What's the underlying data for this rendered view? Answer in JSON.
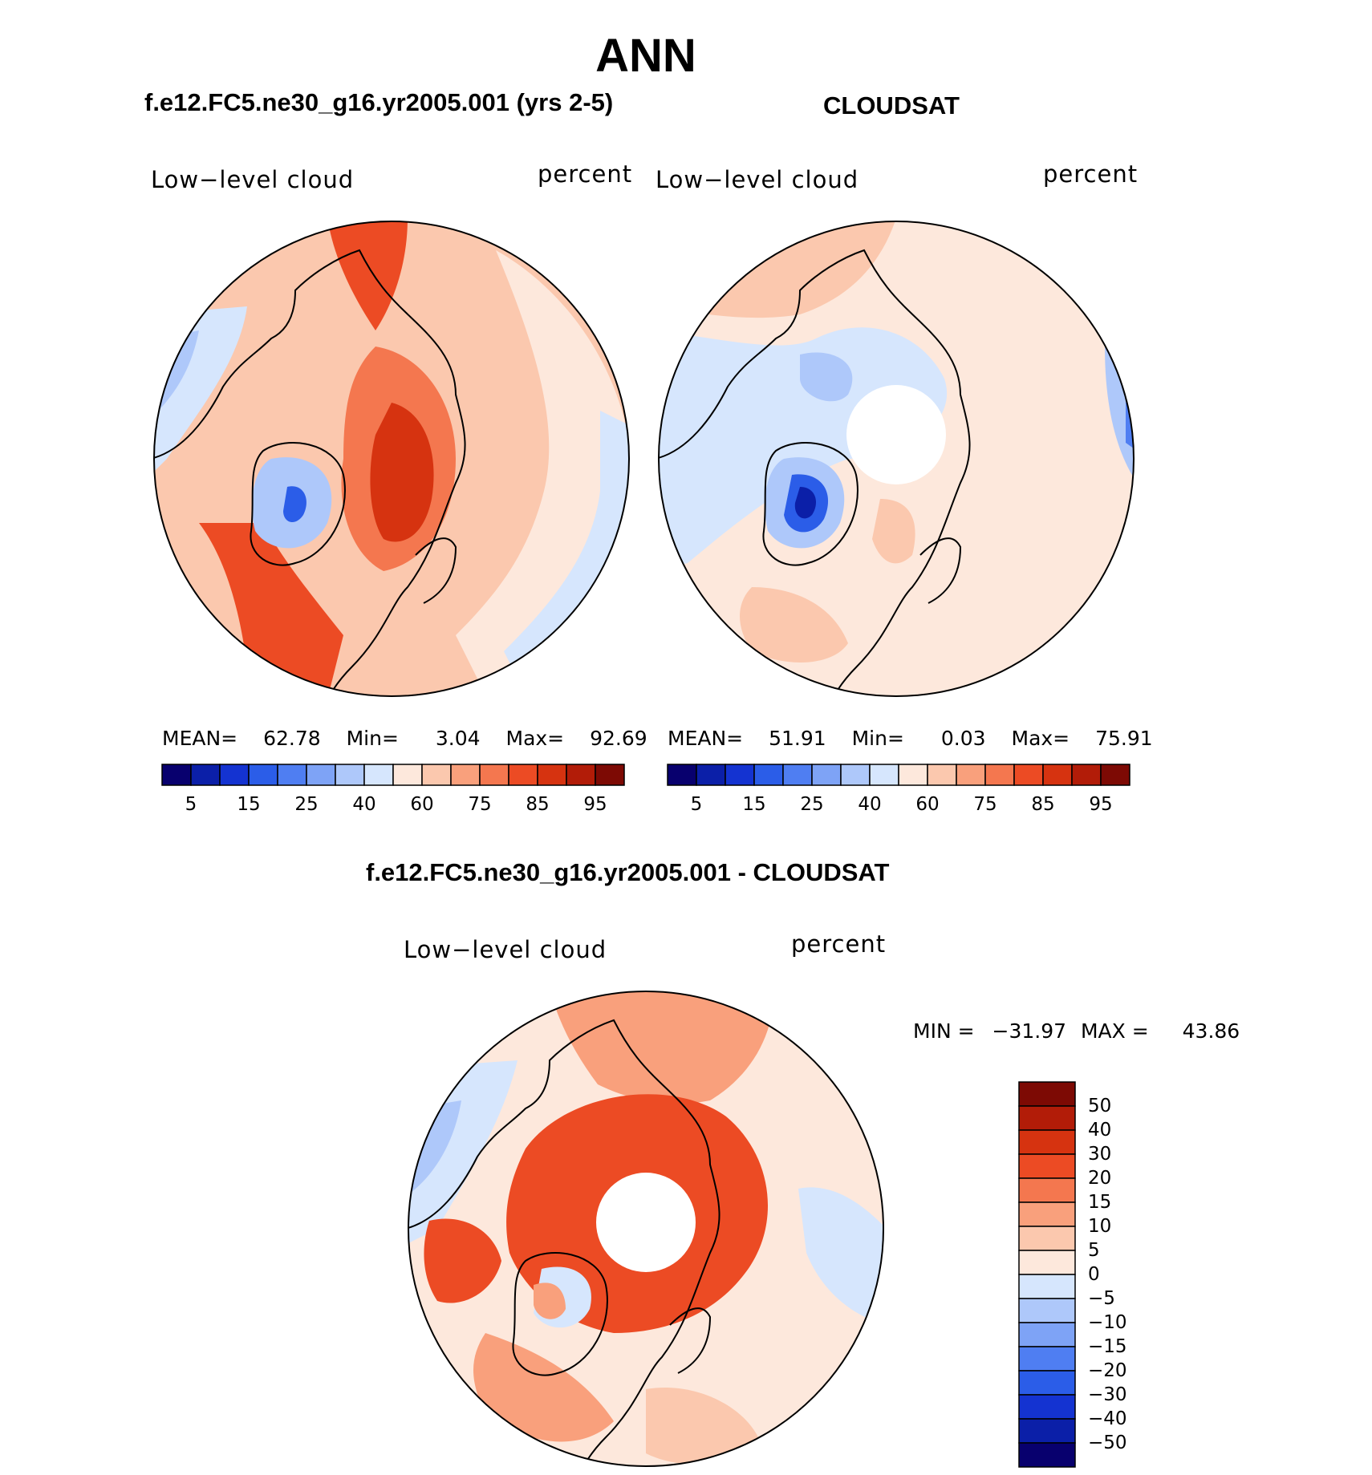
{
  "title": "ANN",
  "panels": [
    {
      "id": "model",
      "subtitle": "f.e12.FC5.ne30_g16.yr2005.001 (yrs 2-5)",
      "field_label": "Low−level cloud",
      "units": "percent",
      "stats": {
        "mean_label": "MEAN=",
        "mean": "62.78",
        "min_label": "Min=",
        "min": "3.04",
        "max_label": "Max=",
        "max": "92.69"
      },
      "pole_hole": false
    },
    {
      "id": "obs",
      "subtitle": "CLOUDSAT",
      "field_label": "Low−level cloud",
      "units": "percent",
      "stats": {
        "mean_label": "MEAN=",
        "mean": "51.91",
        "min_label": "Min=",
        "min": "0.03",
        "max_label": "Max=",
        "max": "75.91"
      },
      "pole_hole": true
    },
    {
      "id": "diff",
      "subtitle": "f.e12.FC5.ne30_g16.yr2005.001 - CLOUDSAT",
      "field_label": "Low−level cloud",
      "units": "percent",
      "stats": {
        "min_label": "MIN =",
        "min": "−31.97",
        "max_label": "MAX =",
        "max": "43.86"
      },
      "pole_hole": true
    }
  ],
  "colorbar_abs": {
    "colors": [
      "#08006e",
      "#0b1fa8",
      "#1433d1",
      "#2b5de8",
      "#4f7ef2",
      "#7ea3f6",
      "#aec8fa",
      "#d6e6fd",
      "#fde8dc",
      "#fbc8ae",
      "#f9a07c",
      "#f4774f",
      "#ec4b24",
      "#d63310",
      "#b21c08",
      "#7d0a04"
    ],
    "tick_labels": [
      "5",
      "15",
      "25",
      "40",
      "60",
      "75",
      "85",
      "95"
    ]
  },
  "colorbar_diff": {
    "colors": [
      "#08006e",
      "#0b1fa8",
      "#1433d1",
      "#2b5de8",
      "#4f7ef2",
      "#7ea3f6",
      "#aec8fa",
      "#d6e6fd",
      "#fde8dc",
      "#fbc8ae",
      "#f9a07c",
      "#f4774f",
      "#ec4b24",
      "#d63310",
      "#b21c08",
      "#7d0a04"
    ],
    "tick_labels": [
      "50",
      "40",
      "30",
      "20",
      "15",
      "10",
      "5",
      "0",
      "−5",
      "−10",
      "−15",
      "−20",
      "−30",
      "−40",
      "−50"
    ]
  }
}
